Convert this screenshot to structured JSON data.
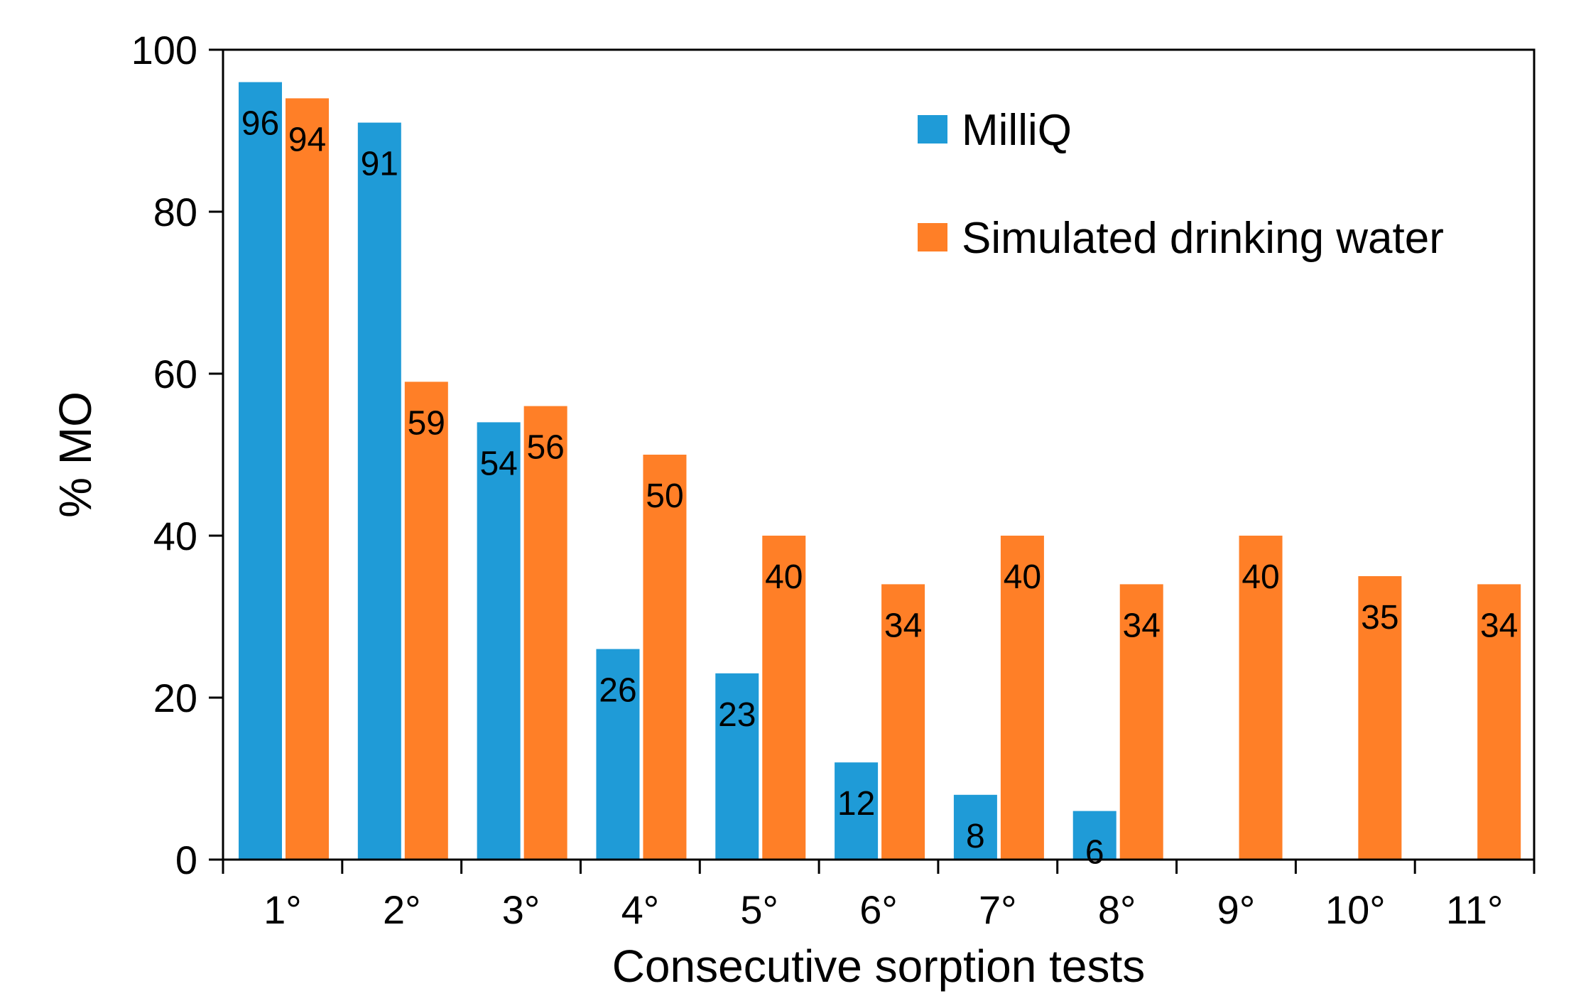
{
  "chart_data": {
    "type": "bar",
    "categories": [
      "1°",
      "2°",
      "3°",
      "4°",
      "5°",
      "6°",
      "7°",
      "8°",
      "9°",
      "10°",
      "11°"
    ],
    "series": [
      {
        "name": "MilliQ",
        "color": "#1f9bd7",
        "values": [
          96,
          91,
          54,
          26,
          23,
          12,
          8,
          6,
          null,
          null,
          null
        ],
        "labels": [
          "96",
          "91",
          "54",
          "26",
          "23",
          "12",
          "8",
          "6",
          null,
          null,
          null
        ]
      },
      {
        "name": "Simulated drinking water",
        "color": "#ff7f27",
        "values": [
          94,
          59,
          56,
          50,
          40,
          34,
          40,
          34,
          40,
          35,
          34
        ],
        "labels": [
          "94",
          "59",
          "56",
          "50",
          "40",
          "34",
          "40",
          "34",
          "40",
          "35",
          "34"
        ]
      }
    ],
    "title": "",
    "xlabel": "Consecutive sorption tests",
    "ylabel": "% MO",
    "ylim": [
      0,
      100
    ],
    "yticks": [
      "0",
      "20",
      "40",
      "60",
      "80",
      "100"
    ],
    "grid": false,
    "legend_position": "top-right"
  }
}
